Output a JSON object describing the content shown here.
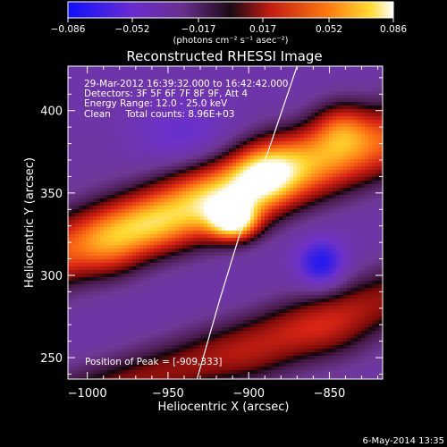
{
  "chart_data": {
    "type": "heatmap",
    "title": "Reconstructed RHESSI Image",
    "xlabel": "Heliocentric X (arcsec)",
    "ylabel": "Heliocentric Y (arcsec)",
    "xlim": [
      -1012,
      -817
    ],
    "ylim": [
      237,
      427
    ],
    "x_ticks": [
      -1000,
      -950,
      -900,
      -850
    ],
    "x_tick_labels": [
      "−1000",
      "−950",
      "−900",
      "−850"
    ],
    "y_ticks": [
      250,
      300,
      350,
      400
    ],
    "y_tick_labels": [
      "250",
      "300",
      "350",
      "400"
    ],
    "colorbar": {
      "range": [
        -0.086,
        0.086
      ],
      "ticks": [
        -0.086,
        -0.052,
        -0.017,
        0.017,
        0.052,
        0.086
      ],
      "tick_labels": [
        "−0.086",
        "−0.052",
        "−0.017",
        "0.017",
        "0.052",
        "0.086"
      ],
      "units_label": "(photons cm⁻² s⁻¹ asec⁻²)",
      "colormap": "blue-purple-red-orange-yellow-white"
    },
    "annotations": [
      "29-Mar-2012 16:39:32.000 to 16:42:42.000",
      "Detectors: 3F 5F 6F 7F 8F 9F, Att 4",
      "Energy Range: 12.0 - 25.0 keV",
      "Clean     Total counts: 8.96E+03"
    ],
    "peak_label": "Position of Peak = [-909,333]",
    "peak": {
      "x": -909,
      "y": 333
    },
    "limb_curve": [
      {
        "x": -932,
        "y": 237
      },
      {
        "x": -918,
        "y": 285
      },
      {
        "x": -904,
        "y": 330
      },
      {
        "x": -888,
        "y": 375
      },
      {
        "x": -870,
        "y": 427
      }
    ],
    "sources": [
      {
        "x": -909,
        "y": 333,
        "amp": 1.0,
        "sx": 10,
        "sy": 8
      },
      {
        "x": -922,
        "y": 345,
        "amp": 0.45,
        "sx": 22,
        "sy": 16
      },
      {
        "x": -892,
        "y": 360,
        "amp": 0.55,
        "sx": 14,
        "sy": 12
      },
      {
        "x": -876,
        "y": 372,
        "amp": 0.35,
        "sx": 20,
        "sy": 14
      },
      {
        "x": -843,
        "y": 390,
        "amp": 0.5,
        "sx": 13,
        "sy": 12
      },
      {
        "x": -960,
        "y": 330,
        "amp": 0.32,
        "sx": 16,
        "sy": 12
      },
      {
        "x": -985,
        "y": 318,
        "amp": 0.28,
        "sx": 14,
        "sy": 14
      },
      {
        "x": -1000,
        "y": 376,
        "amp": 0.05,
        "sx": 14,
        "sy": 14
      },
      {
        "x": -850,
        "y": 262,
        "amp": 0.22,
        "sx": 22,
        "sy": 14
      },
      {
        "x": -895,
        "y": 245,
        "amp": 0.14,
        "sx": 20,
        "sy": 12
      },
      {
        "x": -855,
        "y": 307,
        "amp": -0.6,
        "sx": 10,
        "sy": 10
      },
      {
        "x": -940,
        "y": 385,
        "amp": -0.25,
        "sx": 20,
        "sy": 14
      }
    ]
  },
  "footer": {
    "date_stamp": "6-May-2014 13:35"
  },
  "colors": {
    "background": "#000000",
    "text": "#ffffff",
    "limb": "#ffffff"
  }
}
